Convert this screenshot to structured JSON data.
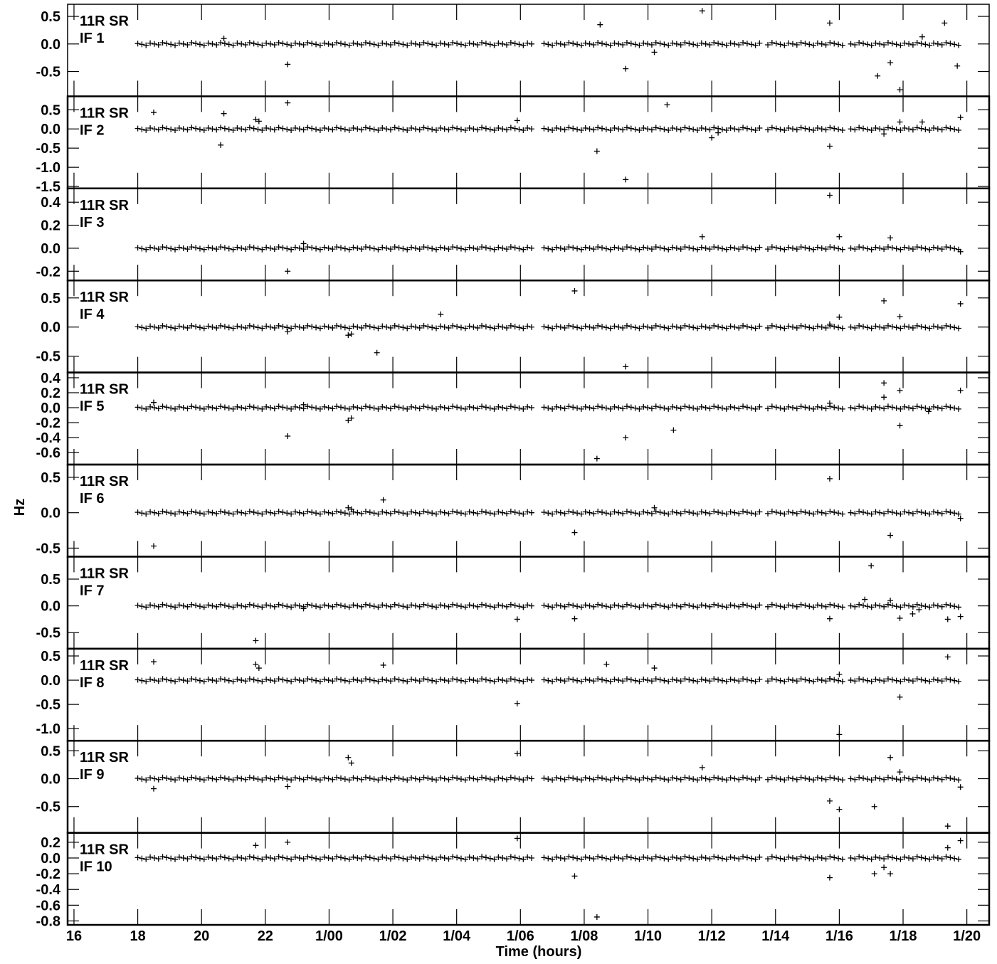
{
  "chart_data": {
    "type": "scatter",
    "marker": "plus",
    "xlabel": "Time (hours)",
    "ylabel": "Hz",
    "x_unit": "hours",
    "xlim": [
      15.8,
      44.7
    ],
    "x_ticks": [
      16,
      18,
      20,
      22,
      24,
      26,
      28,
      30,
      32,
      34,
      36,
      38,
      40,
      42,
      44
    ],
    "x_tick_labels": [
      "16",
      "18",
      "20",
      "22",
      "1/00",
      "1/02",
      "1/04",
      "1/06",
      "1/08",
      "1/10",
      "1/12",
      "1/14",
      "1/16",
      "1/18",
      "1/20"
    ],
    "panels": [
      {
        "line1": "11R SR",
        "line2": "IF 1",
        "ylim": [
          -0.95,
          0.72
        ],
        "ticks": [
          -0.5,
          0.0,
          0.5
        ],
        "tick_labels": [
          "-0.5",
          "0.0",
          "0.5"
        ],
        "outliers": [
          [
            20.7,
            0.1
          ],
          [
            22.7,
            -0.37
          ],
          [
            32.5,
            0.35
          ],
          [
            33.3,
            -0.45
          ],
          [
            34.2,
            -0.15
          ],
          [
            35.7,
            0.6
          ],
          [
            39.7,
            0.38
          ],
          [
            41.2,
            -0.58
          ],
          [
            41.6,
            -0.34
          ],
          [
            41.9,
            -0.83
          ],
          [
            42.6,
            0.13
          ],
          [
            43.3,
            0.38
          ],
          [
            43.7,
            -0.4
          ]
        ]
      },
      {
        "line1": "11R SR",
        "line2": "IF 2",
        "ylim": [
          -1.55,
          0.85
        ],
        "ticks": [
          -1.5,
          -1.0,
          -0.5,
          0.0,
          0.5
        ],
        "tick_labels": [
          "-1.5",
          "-1.0",
          "-0.5",
          "0.0",
          "0.5"
        ],
        "outliers": [
          [
            18.5,
            0.43
          ],
          [
            20.7,
            0.4
          ],
          [
            20.6,
            -0.42
          ],
          [
            21.7,
            0.25
          ],
          [
            21.8,
            0.2
          ],
          [
            22.7,
            0.68
          ],
          [
            29.9,
            0.22
          ],
          [
            32.4,
            -0.58
          ],
          [
            33.3,
            -1.32
          ],
          [
            34.6,
            0.63
          ],
          [
            36.0,
            -0.23
          ],
          [
            36.2,
            -0.1
          ],
          [
            39.7,
            -0.45
          ],
          [
            41.4,
            -0.13
          ],
          [
            41.9,
            0.18
          ],
          [
            42.6,
            0.18
          ],
          [
            43.8,
            0.3
          ]
        ]
      },
      {
        "line1": "11R SR",
        "line2": "IF 3",
        "ylim": [
          -0.28,
          0.52
        ],
        "ticks": [
          -0.2,
          0.0,
          0.2,
          0.4
        ],
        "tick_labels": [
          "-0.2",
          "0.0",
          "0.2",
          "0.4"
        ],
        "outliers": [
          [
            22.7,
            -0.2
          ],
          [
            23.2,
            0.04
          ],
          [
            35.7,
            0.1
          ],
          [
            39.7,
            0.46
          ],
          [
            40.0,
            0.1
          ],
          [
            41.6,
            0.09
          ],
          [
            43.8,
            -0.03
          ]
        ]
      },
      {
        "line1": "11R SR",
        "line2": "IF 4",
        "ylim": [
          -0.78,
          0.8
        ],
        "ticks": [
          -0.5,
          0.0,
          0.5
        ],
        "tick_labels": [
          "-0.5",
          "0.0",
          "0.5"
        ],
        "outliers": [
          [
            22.7,
            -0.08
          ],
          [
            24.6,
            -0.14
          ],
          [
            24.7,
            -0.12
          ],
          [
            25.5,
            -0.44
          ],
          [
            27.5,
            0.22
          ],
          [
            31.7,
            0.62
          ],
          [
            33.3,
            -0.68
          ],
          [
            39.7,
            0.05
          ],
          [
            40.0,
            0.17
          ],
          [
            41.4,
            0.45
          ],
          [
            41.9,
            0.18
          ],
          [
            43.8,
            0.4
          ]
        ]
      },
      {
        "line1": "11R SR",
        "line2": "IF 5",
        "ylim": [
          -0.76,
          0.47
        ],
        "ticks": [
          -0.6,
          -0.4,
          -0.2,
          0.0,
          0.2,
          0.4
        ],
        "tick_labels": [
          "-0.6",
          "-0.4",
          "-0.2",
          "0.0",
          "0.2",
          "0.4"
        ],
        "outliers": [
          [
            18.5,
            0.07
          ],
          [
            22.7,
            -0.38
          ],
          [
            23.2,
            0.04
          ],
          [
            24.6,
            -0.17
          ],
          [
            24.7,
            -0.14
          ],
          [
            32.4,
            -0.68
          ],
          [
            33.3,
            -0.4
          ],
          [
            34.8,
            -0.3
          ],
          [
            39.7,
            0.06
          ],
          [
            41.4,
            0.33
          ],
          [
            41.4,
            0.14
          ],
          [
            41.9,
            0.23
          ],
          [
            41.9,
            -0.24
          ],
          [
            42.8,
            -0.05
          ],
          [
            43.8,
            0.23
          ]
        ]
      },
      {
        "line1": "11R SR",
        "line2": "IF 6",
        "ylim": [
          -0.62,
          0.68
        ],
        "ticks": [
          -0.5,
          0.0,
          0.5
        ],
        "tick_labels": [
          "-0.5",
          "0.0",
          "0.5"
        ],
        "outliers": [
          [
            18.5,
            -0.47
          ],
          [
            24.6,
            0.07
          ],
          [
            24.7,
            0.05
          ],
          [
            25.7,
            0.18
          ],
          [
            31.7,
            -0.28
          ],
          [
            34.2,
            0.07
          ],
          [
            39.7,
            0.48
          ],
          [
            41.6,
            -0.32
          ],
          [
            43.8,
            -0.08
          ]
        ]
      },
      {
        "line1": "11R SR",
        "line2": "IF 7",
        "ylim": [
          -0.8,
          0.92
        ],
        "ticks": [
          -0.5,
          0.0,
          0.5
        ],
        "tick_labels": [
          "-0.5",
          "0.0",
          "0.5"
        ],
        "outliers": [
          [
            21.7,
            -0.65
          ],
          [
            23.2,
            -0.05
          ],
          [
            29.9,
            -0.25
          ],
          [
            31.7,
            -0.24
          ],
          [
            39.7,
            -0.24
          ],
          [
            40.8,
            0.12
          ],
          [
            41.0,
            0.75
          ],
          [
            41.6,
            0.1
          ],
          [
            41.9,
            -0.23
          ],
          [
            42.3,
            -0.15
          ],
          [
            42.5,
            -0.07
          ],
          [
            43.4,
            -0.25
          ],
          [
            43.8,
            -0.2
          ]
        ]
      },
      {
        "line1": "11R SR",
        "line2": "IF 8",
        "ylim": [
          -1.25,
          0.65
        ],
        "ticks": [
          -1.0,
          -0.5,
          0.0,
          0.5
        ],
        "tick_labels": [
          "-1.0",
          "-0.5",
          "0.0",
          "0.5"
        ],
        "outliers": [
          [
            18.5,
            0.38
          ],
          [
            21.7,
            0.33
          ],
          [
            21.8,
            0.25
          ],
          [
            25.7,
            0.31
          ],
          [
            29.9,
            -0.48
          ],
          [
            32.7,
            0.33
          ],
          [
            34.2,
            0.25
          ],
          [
            39.7,
            0.03
          ],
          [
            40.0,
            0.12
          ],
          [
            40.0,
            -1.12
          ],
          [
            41.9,
            -0.35
          ],
          [
            43.4,
            0.48
          ]
        ]
      },
      {
        "line1": "11R SR",
        "line2": "IF 9",
        "ylim": [
          -0.97,
          0.68
        ],
        "ticks": [
          -0.5,
          0.0,
          0.5
        ],
        "tick_labels": [
          "-0.5",
          "0.0",
          "0.5"
        ],
        "outliers": [
          [
            18.5,
            -0.18
          ],
          [
            22.7,
            -0.14
          ],
          [
            24.6,
            0.38
          ],
          [
            24.7,
            0.28
          ],
          [
            29.9,
            0.45
          ],
          [
            35.7,
            0.2
          ],
          [
            39.7,
            -0.4
          ],
          [
            40.0,
            -0.55
          ],
          [
            41.1,
            -0.5
          ],
          [
            41.6,
            0.38
          ],
          [
            41.9,
            0.12
          ],
          [
            43.4,
            -0.85
          ],
          [
            43.8,
            -0.15
          ]
        ]
      },
      {
        "line1": "11R SR",
        "line2": "IF 10",
        "ylim": [
          -0.85,
          0.32
        ],
        "ticks": [
          -0.8,
          -0.6,
          -0.4,
          -0.2,
          0.0,
          0.2
        ],
        "tick_labels": [
          "-0.8",
          "-0.6",
          "-0.4",
          "-0.2",
          "0.0",
          "0.2"
        ],
        "outliers": [
          [
            21.7,
            0.16
          ],
          [
            22.7,
            0.2
          ],
          [
            29.9,
            0.25
          ],
          [
            31.7,
            -0.23
          ],
          [
            32.4,
            -0.75
          ],
          [
            39.7,
            -0.25
          ],
          [
            41.1,
            -0.2
          ],
          [
            41.4,
            -0.12
          ],
          [
            41.6,
            -0.2
          ],
          [
            43.4,
            0.13
          ],
          [
            43.8,
            0.22
          ]
        ]
      }
    ]
  }
}
